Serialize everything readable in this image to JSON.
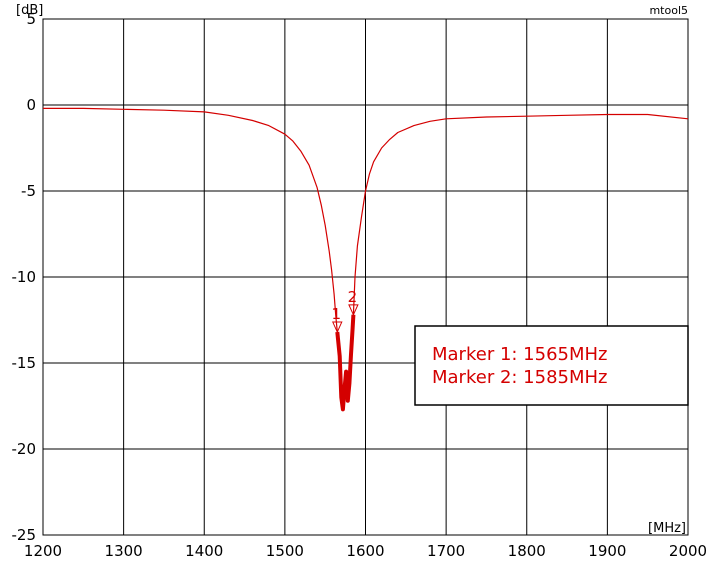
{
  "chart_data": {
    "type": "line",
    "brand": "mtool5",
    "xunit": "[MHz]",
    "yunit": "[dB]",
    "xlim": [
      1200,
      2000
    ],
    "ylim": [
      -25,
      5
    ],
    "xticks": [
      "1200",
      "1300",
      "1400",
      "1500",
      "1600",
      "1700",
      "1800",
      "1900",
      "2000"
    ],
    "yticks": [
      "5",
      "0",
      "-5",
      "-10",
      "-15",
      "-20",
      "-25"
    ],
    "grid": true,
    "line_color": "#d40000",
    "series": [
      {
        "x": [
          1200,
          1250,
          1300,
          1350,
          1400,
          1430,
          1460,
          1480,
          1500,
          1510,
          1520,
          1530,
          1540,
          1545,
          1550,
          1555,
          1558,
          1561,
          1563,
          1565,
          1568,
          1570,
          1572,
          1574,
          1576,
          1578,
          1580,
          1582,
          1584,
          1585,
          1587,
          1590,
          1595,
          1600,
          1605,
          1610,
          1620,
          1630,
          1640,
          1660,
          1680,
          1700,
          1750,
          1800,
          1850,
          1900,
          1950,
          2000
        ],
        "y": [
          -0.2,
          -0.2,
          -0.25,
          -0.3,
          -0.4,
          -0.6,
          -0.9,
          -1.2,
          -1.7,
          -2.1,
          -2.7,
          -3.5,
          -4.8,
          -5.8,
          -7.0,
          -8.5,
          -9.6,
          -11.0,
          -12.2,
          -13.2,
          -14.6,
          -17.0,
          -17.7,
          -16.5,
          -15.5,
          -17.2,
          -16.2,
          -14.5,
          -13.0,
          -12.2,
          -10.0,
          -8.2,
          -6.5,
          -5.0,
          -4.0,
          -3.3,
          -2.5,
          -2.0,
          -1.6,
          -1.2,
          -0.95,
          -0.8,
          -0.7,
          -0.65,
          -0.6,
          -0.55,
          -0.55,
          -0.8
        ]
      }
    ],
    "bold_range": [
      1565,
      1585
    ],
    "markers": [
      {
        "label": "1",
        "x": 1565,
        "y": -13.2
      },
      {
        "label": "2",
        "x": 1585,
        "y": -12.2
      }
    ],
    "legend": {
      "lines": [
        "Marker 1: 1565MHz",
        "Marker 2: 1585MHz"
      ]
    }
  }
}
